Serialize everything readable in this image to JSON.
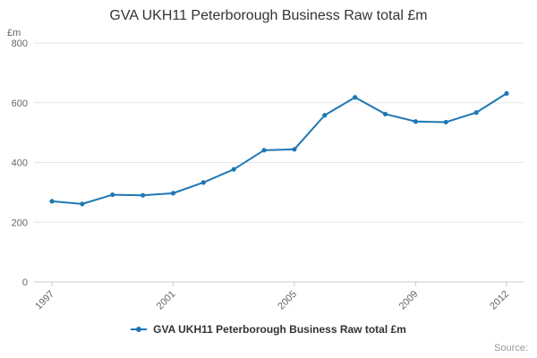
{
  "title": "GVA UKH11 Peterborough Business Raw total £m",
  "source_label": "Source:",
  "legend": {
    "label": "GVA UKH11 Peterborough Business Raw total £m"
  },
  "colors": {
    "line": "#1f77b4",
    "grid": "#e6e6e6",
    "axis": "#cccccc",
    "tick_text": "#666666",
    "title_text": "#333333"
  },
  "chart_data": {
    "type": "line",
    "title": "GVA UKH11 Peterborough Business Raw total £m",
    "unit_label": "£m",
    "x": [
      1997,
      1998,
      1999,
      2000,
      2001,
      2002,
      2003,
      2004,
      2005,
      2006,
      2007,
      2008,
      2009,
      2010,
      2011,
      2012
    ],
    "values": [
      270,
      261,
      292,
      290,
      297,
      333,
      377,
      441,
      444,
      558,
      618,
      562,
      537,
      535,
      567,
      631
    ],
    "series_name": "GVA UKH11 Peterborough Business Raw total £m",
    "xlabel": "",
    "ylabel": "£m",
    "ylim": [
      0,
      800
    ],
    "yticks": [
      0,
      200,
      400,
      600,
      800
    ],
    "xticks": [
      1997,
      2001,
      2005,
      2009,
      2012
    ],
    "grid": true,
    "legend_position": "bottom",
    "markers": true
  }
}
